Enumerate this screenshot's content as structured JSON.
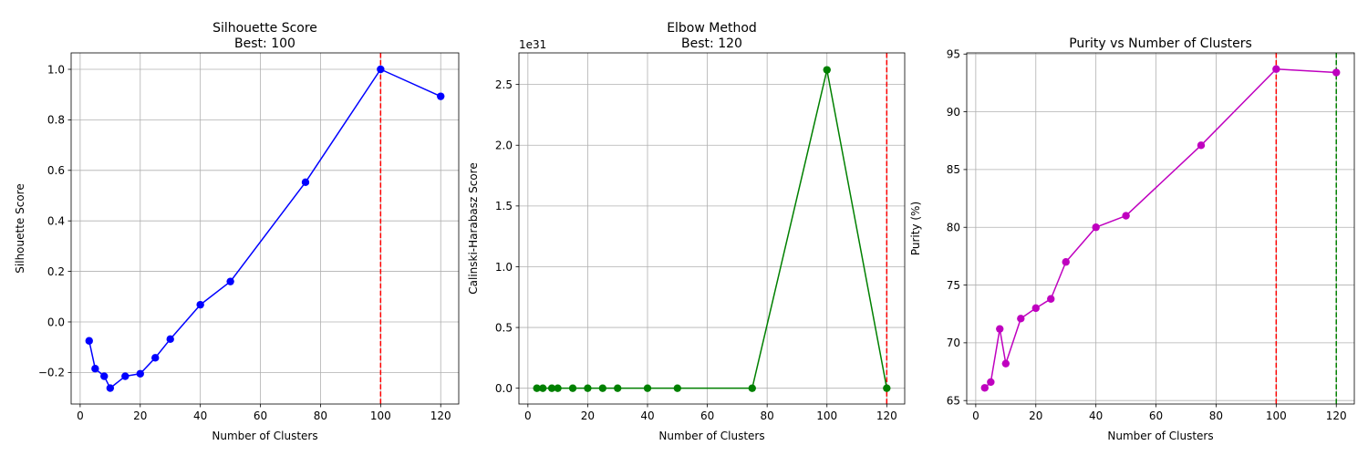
{
  "chart_data": [
    {
      "type": "line",
      "title_lines": [
        "Silhouette Score",
        "Best: 100"
      ],
      "xlabel": "Number of Clusters",
      "ylabel": "Silhouette Score",
      "xlim": [
        -3,
        126
      ],
      "ylim": [
        -0.325,
        1.065
      ],
      "xticks": [
        0,
        20,
        40,
        60,
        80,
        100,
        120
      ],
      "xtick_labels": [
        "0",
        "20",
        "40",
        "60",
        "80",
        "100",
        "120"
      ],
      "yticks": [
        -0.2,
        0.0,
        0.2,
        0.4,
        0.6,
        0.8,
        1.0
      ],
      "ytick_labels": [
        "−0.2",
        "0.0",
        "0.2",
        "0.4",
        "0.6",
        "0.8",
        "1.0"
      ],
      "offset_text": "",
      "grid": true,
      "color": "#0000ff",
      "x": [
        3,
        5,
        8,
        10,
        15,
        20,
        25,
        30,
        40,
        50,
        75,
        100,
        120
      ],
      "y": [
        -0.075,
        -0.185,
        -0.215,
        -0.262,
        -0.215,
        -0.205,
        -0.142,
        -0.068,
        0.068,
        0.16,
        0.553,
        1.0,
        0.893
      ],
      "vlines": [
        {
          "x": 100,
          "color": "#ff0000"
        }
      ]
    },
    {
      "type": "line",
      "title_lines": [
        "Elbow Method",
        "Best: 120"
      ],
      "xlabel": "Number of Clusters",
      "ylabel": "Calinski-Harabasz Score",
      "xlim": [
        -3,
        126
      ],
      "ylim": [
        -0.13,
        2.76
      ],
      "xticks": [
        0,
        20,
        40,
        60,
        80,
        100,
        120
      ],
      "xtick_labels": [
        "0",
        "20",
        "40",
        "60",
        "80",
        "100",
        "120"
      ],
      "yticks": [
        0.0,
        0.5,
        1.0,
        1.5,
        2.0,
        2.5
      ],
      "ytick_labels": [
        "0.0",
        "0.5",
        "1.0",
        "1.5",
        "2.0",
        "2.5"
      ],
      "offset_text": "1e31",
      "grid": true,
      "color": "#008000",
      "x": [
        3,
        5,
        8,
        10,
        15,
        20,
        25,
        30,
        40,
        50,
        75,
        100,
        120
      ],
      "y": [
        0,
        0,
        0,
        0,
        0,
        0,
        0,
        0,
        0,
        0,
        0,
        2.62,
        0
      ],
      "vlines": [
        {
          "x": 120,
          "color": "#ff0000"
        }
      ]
    },
    {
      "type": "line",
      "title_lines": [
        "Purity vs Number of Clusters"
      ],
      "xlabel": "Number of Clusters",
      "ylabel": "Purity (%)",
      "xlim": [
        -3,
        126
      ],
      "ylim": [
        64.7,
        95.1
      ],
      "xticks": [
        0,
        20,
        40,
        60,
        80,
        100,
        120
      ],
      "xtick_labels": [
        "0",
        "20",
        "40",
        "60",
        "80",
        "100",
        "120"
      ],
      "yticks": [
        65,
        70,
        75,
        80,
        85,
        90,
        95
      ],
      "ytick_labels": [
        "65",
        "70",
        "75",
        "80",
        "85",
        "90",
        "95"
      ],
      "offset_text": "",
      "grid": true,
      "color": "#bf00bf",
      "x": [
        3,
        5,
        8,
        10,
        15,
        20,
        25,
        30,
        40,
        50,
        75,
        100,
        120
      ],
      "y": [
        66.1,
        66.6,
        71.2,
        68.2,
        72.1,
        73.0,
        73.8,
        77.0,
        80.0,
        81.0,
        87.1,
        93.7,
        93.4
      ],
      "vlines": [
        {
          "x": 100,
          "color": "#ff0000"
        },
        {
          "x": 120,
          "color": "#008000"
        }
      ]
    }
  ]
}
